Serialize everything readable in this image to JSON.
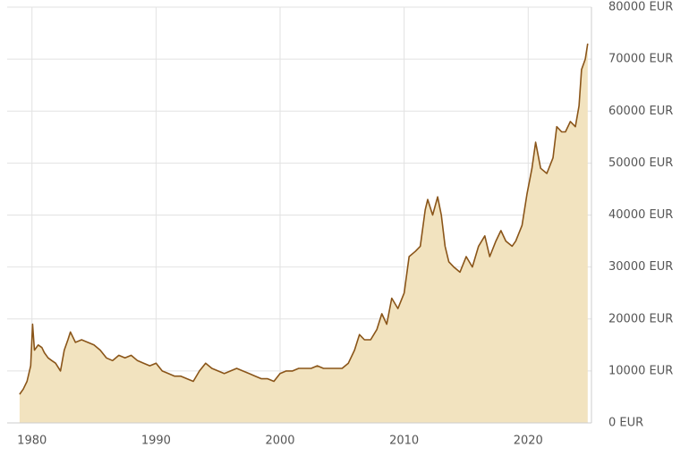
{
  "chart_data": {
    "type": "area",
    "x": [
      1979.0,
      1979.3,
      1979.6,
      1979.9,
      1980.05,
      1980.2,
      1980.5,
      1980.8,
      1981.0,
      1981.3,
      1981.6,
      1981.9,
      1982.3,
      1982.6,
      1982.9,
      1983.1,
      1983.5,
      1984.0,
      1984.5,
      1985.0,
      1985.5,
      1986.0,
      1986.5,
      1987.0,
      1987.5,
      1988.0,
      1988.5,
      1989.0,
      1989.5,
      1990.0,
      1990.5,
      1991.0,
      1991.5,
      1992.0,
      1992.5,
      1993.0,
      1993.5,
      1994.0,
      1994.5,
      1995.0,
      1995.5,
      1996.0,
      1996.5,
      1997.0,
      1997.5,
      1998.0,
      1998.5,
      1999.0,
      1999.5,
      2000.0,
      2000.5,
      2001.0,
      2001.5,
      2002.0,
      2002.5,
      2003.0,
      2003.5,
      2004.0,
      2004.5,
      2005.0,
      2005.5,
      2006.0,
      2006.4,
      2006.8,
      2007.3,
      2007.8,
      2008.2,
      2008.6,
      2009.0,
      2009.5,
      2010.0,
      2010.4,
      2010.9,
      2011.3,
      2011.7,
      2011.9,
      2012.3,
      2012.7,
      2013.0,
      2013.3,
      2013.6,
      2014.0,
      2014.5,
      2015.0,
      2015.5,
      2016.0,
      2016.5,
      2016.9,
      2017.4,
      2017.8,
      2018.2,
      2018.7,
      2019.0,
      2019.5,
      2019.9,
      2020.3,
      2020.6,
      2021.0,
      2021.5,
      2022.0,
      2022.3,
      2022.7,
      2023.0,
      2023.4,
      2023.8,
      2024.1,
      2024.3,
      2024.6,
      2024.8
    ],
    "values": [
      5500,
      6500,
      8000,
      11000,
      19000,
      14000,
      15000,
      14500,
      13500,
      12500,
      12000,
      11500,
      10000,
      14000,
      16000,
      17500,
      15500,
      16000,
      15500,
      15000,
      14000,
      12500,
      12000,
      13000,
      12500,
      13000,
      12000,
      11500,
      11000,
      11500,
      10000,
      9500,
      9000,
      9000,
      8500,
      8000,
      10000,
      11500,
      10500,
      10000,
      9500,
      10000,
      10500,
      10000,
      9500,
      9000,
      8500,
      8500,
      8000,
      9500,
      10000,
      10000,
      10500,
      10500,
      10500,
      11000,
      10500,
      10500,
      10500,
      10500,
      11500,
      14000,
      17000,
      16000,
      16000,
      18000,
      21000,
      19000,
      24000,
      22000,
      25000,
      32000,
      33000,
      34000,
      41000,
      43000,
      40000,
      43500,
      40000,
      34000,
      31000,
      30000,
      29000,
      32000,
      30000,
      34000,
      36000,
      32000,
      35000,
      37000,
      35000,
      34000,
      35000,
      38000,
      44000,
      49000,
      54000,
      49000,
      48000,
      51000,
      57000,
      56000,
      56000,
      58000,
      57000,
      61000,
      68000,
      70000,
      73000
    ],
    "line_color": "#8a5519",
    "fill_color": "#f2e3bf",
    "xlim": [
      1978,
      2025.1
    ],
    "xticks": [
      1980,
      1990,
      2000,
      2010,
      2020
    ],
    "ylim": [
      0,
      80000
    ],
    "yticks": [
      {
        "value": 0,
        "label": "0 EUR"
      },
      {
        "value": 10000,
        "label": "10000 EUR"
      },
      {
        "value": 20000,
        "label": "20000 EUR"
      },
      {
        "value": 30000,
        "label": "30000 EUR"
      },
      {
        "value": 40000,
        "label": "40000 EUR"
      },
      {
        "value": 50000,
        "label": "50000 EUR"
      },
      {
        "value": 60000,
        "label": "60000 EUR"
      },
      {
        "value": 70000,
        "label": "70000 EUR"
      },
      {
        "value": 80000,
        "label": "80000 EUR"
      }
    ],
    "grid": true
  }
}
